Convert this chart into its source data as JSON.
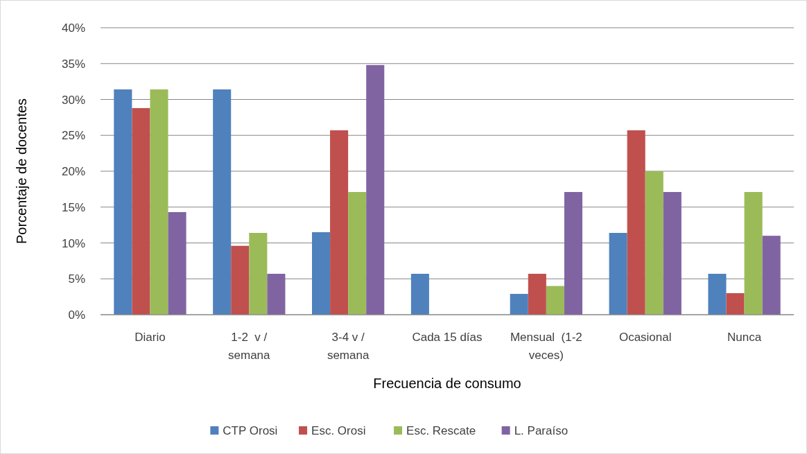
{
  "chart_data": {
    "type": "bar",
    "xlabel": "Frecuencia de consumo",
    "ylabel": "Porcentaje de docentes",
    "categories": [
      "Diario",
      "1-2  v / semana",
      "3-4 v / semana",
      "Cada 15 días",
      "Mensual  (1-2 veces)",
      "Ocasional",
      "Nunca"
    ],
    "series": [
      {
        "name": "CTP Orosi",
        "color": "#4f81bd",
        "values": [
          31.4,
          31.4,
          11.5,
          5.7,
          2.9,
          11.4,
          5.7
        ]
      },
      {
        "name": "Esc. Orosi",
        "color": "#c0504d",
        "values": [
          28.8,
          9.6,
          25.7,
          0,
          5.7,
          25.7,
          3.0
        ]
      },
      {
        "name": "Esc. Rescate",
        "color": "#9bbb59",
        "values": [
          31.4,
          11.4,
          17.1,
          0,
          4.0,
          20.0,
          17.1
        ]
      },
      {
        "name": "L. Paraíso",
        "color": "#8064a2",
        "values": [
          14.3,
          5.7,
          34.8,
          0,
          17.1,
          17.1,
          11.0
        ]
      }
    ],
    "ylim": [
      0,
      40
    ],
    "yticks": [
      {
        "value": 0,
        "label": "0%"
      },
      {
        "value": 5,
        "label": "5%"
      },
      {
        "value": 10,
        "label": "10%"
      },
      {
        "value": 15,
        "label": "15%"
      },
      {
        "value": 20,
        "label": "20%"
      },
      {
        "value": 25,
        "label": "25%"
      },
      {
        "value": 30,
        "label": "30%"
      },
      {
        "value": 35,
        "label": "35%"
      },
      {
        "value": 40,
        "label": "40%"
      }
    ],
    "grid": "y",
    "legend": "bottom"
  }
}
